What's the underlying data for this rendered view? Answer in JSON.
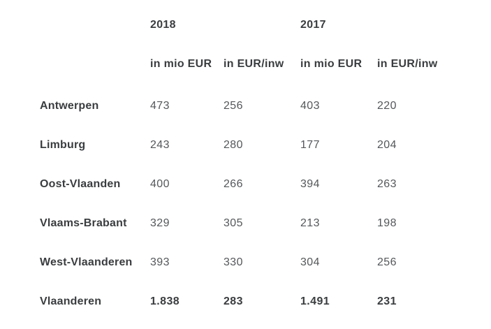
{
  "table": {
    "year_headers": [
      "2018",
      "2017"
    ],
    "column_headers": [
      "in mio EUR",
      "in EUR/inw",
      "in mio EUR",
      "in EUR/inw"
    ],
    "rows": [
      {
        "label": "Antwerpen",
        "values": [
          "473",
          "256",
          "403",
          "220"
        ],
        "total": false
      },
      {
        "label": "Limburg",
        "values": [
          "243",
          "280",
          "177",
          "204"
        ],
        "total": false
      },
      {
        "label": "Oost-Vlaanden",
        "values": [
          "400",
          "266",
          "394",
          "263"
        ],
        "total": false
      },
      {
        "label": "Vlaams-Brabant",
        "values": [
          "329",
          "305",
          "213",
          "198"
        ],
        "total": false
      },
      {
        "label": "West-Vlaanderen",
        "values": [
          "393",
          "330",
          "304",
          "256"
        ],
        "total": false
      },
      {
        "label": "Vlaanderen",
        "values": [
          "1.838",
          "283",
          "1.491",
          "231"
        ],
        "total": true
      }
    ],
    "colors": {
      "background": "#ffffff",
      "label_text": "#3a3d3f",
      "value_text": "#54575a"
    }
  },
  "chart_data": {
    "type": "table",
    "title": "",
    "column_groups": [
      {
        "label": "2018",
        "span": 2
      },
      {
        "label": "2017",
        "span": 2
      }
    ],
    "columns": [
      "",
      "in mio EUR",
      "in EUR/inw",
      "in mio EUR",
      "in EUR/inw"
    ],
    "rows": [
      [
        "Antwerpen",
        473,
        256,
        403,
        220
      ],
      [
        "Limburg",
        243,
        280,
        177,
        204
      ],
      [
        "Oost-Vlaanden",
        400,
        266,
        394,
        263
      ],
      [
        "Vlaams-Brabant",
        329,
        305,
        213,
        198
      ],
      [
        "West-Vlaanderen",
        393,
        330,
        304,
        256
      ],
      [
        "Vlaanderen",
        1838,
        283,
        1491,
        231
      ]
    ],
    "notes": "Vlaanderen row is a bold totals row; thousands separator shown as dot (1.838, 1.491)"
  }
}
